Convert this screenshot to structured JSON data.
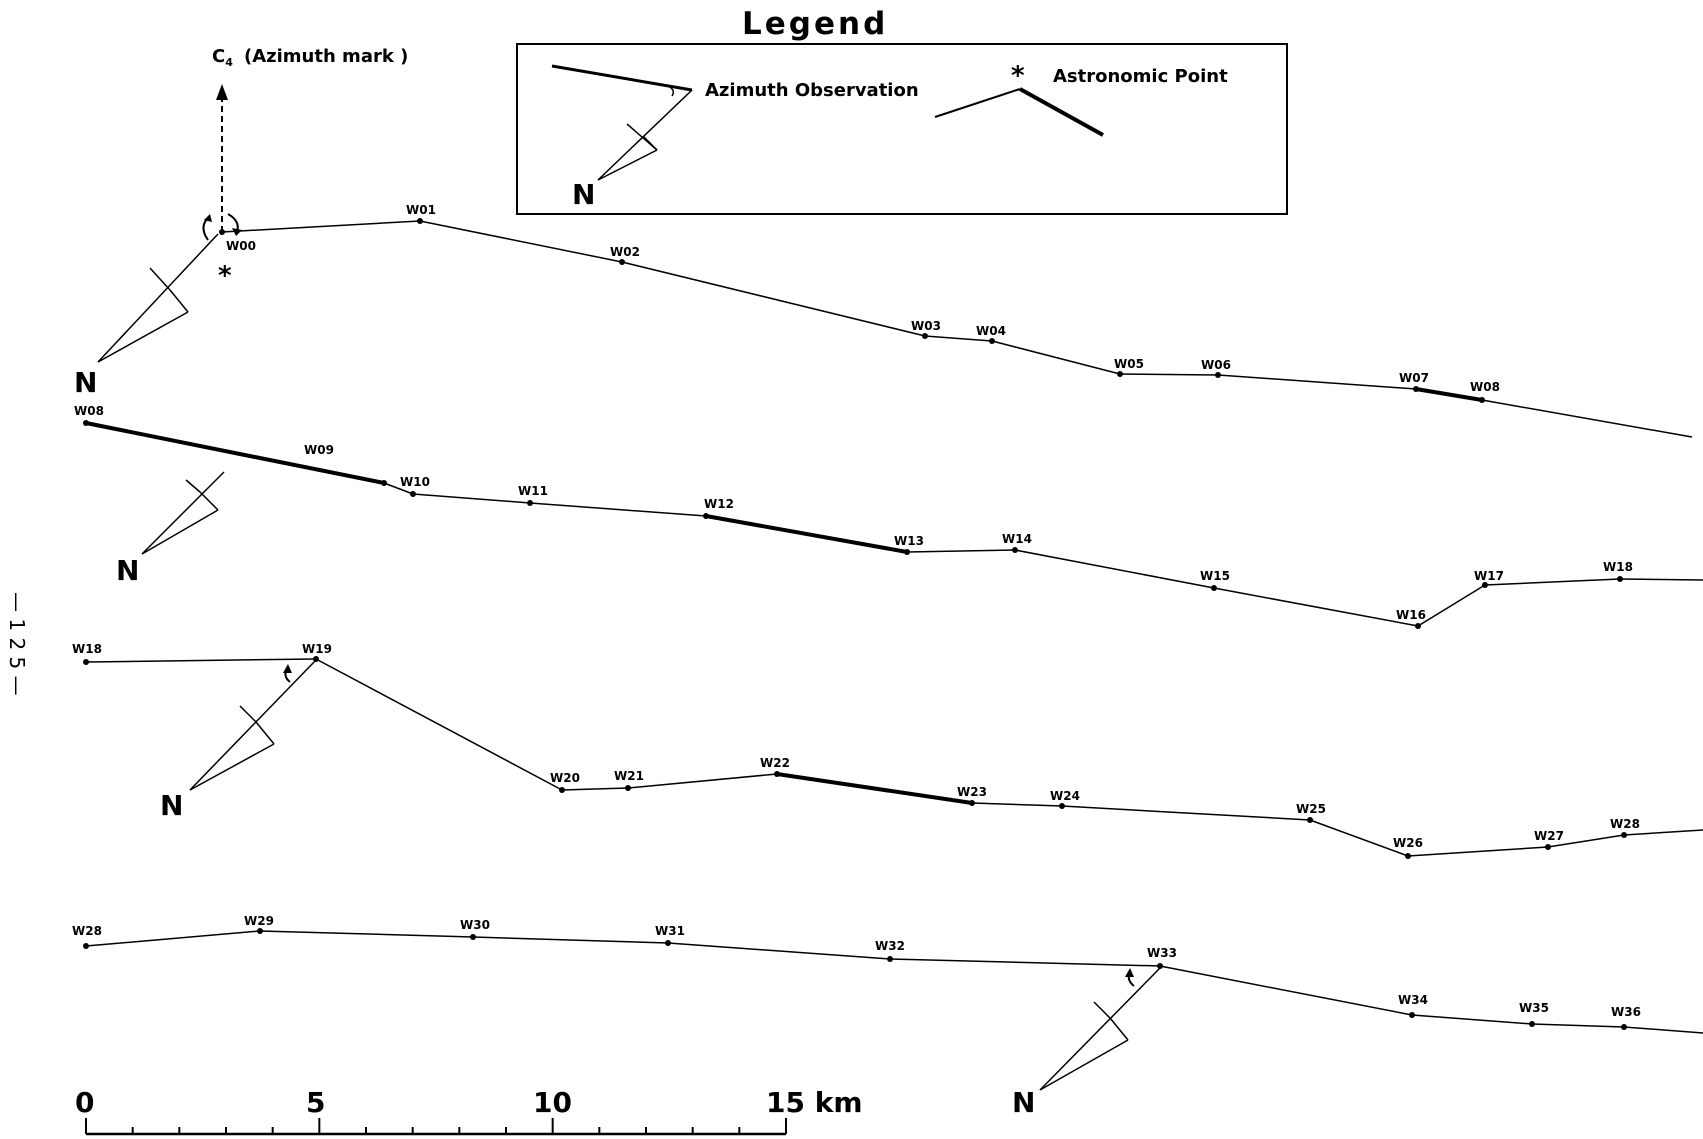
{
  "legend": {
    "title": "Legend",
    "azimuth_label": "Azimuth Observation",
    "astro_label": "Astronomic Point",
    "north_letter": "N"
  },
  "azimuth_mark": {
    "letter": "C",
    "subscript": "4",
    "label": "(Azimuth mark )"
  },
  "page_number": "— 1 2 5 —",
  "north_letter": "N",
  "traverse_rows": [
    {
      "stations": [
        "W00",
        "W01",
        "W02",
        "W03",
        "W04",
        "W05",
        "W06",
        "W07",
        "W08"
      ]
    },
    {
      "stations": [
        "W08",
        "W09",
        "W10",
        "W11",
        "W12",
        "W13",
        "W14",
        "W15",
        "W16",
        "W17",
        "W18"
      ]
    },
    {
      "stations": [
        "W18",
        "W19",
        "W20",
        "W21",
        "W22",
        "W23",
        "W24",
        "W25",
        "W26",
        "W27",
        "W28"
      ]
    },
    {
      "stations": [
        "W28",
        "W29",
        "W30",
        "W31",
        "W32",
        "W33",
        "W34",
        "W35",
        "W36"
      ]
    }
  ],
  "scale_bar": {
    "ticks": [
      "0",
      "5",
      "10"
    ],
    "last_label": "15 km",
    "unit": "km"
  }
}
